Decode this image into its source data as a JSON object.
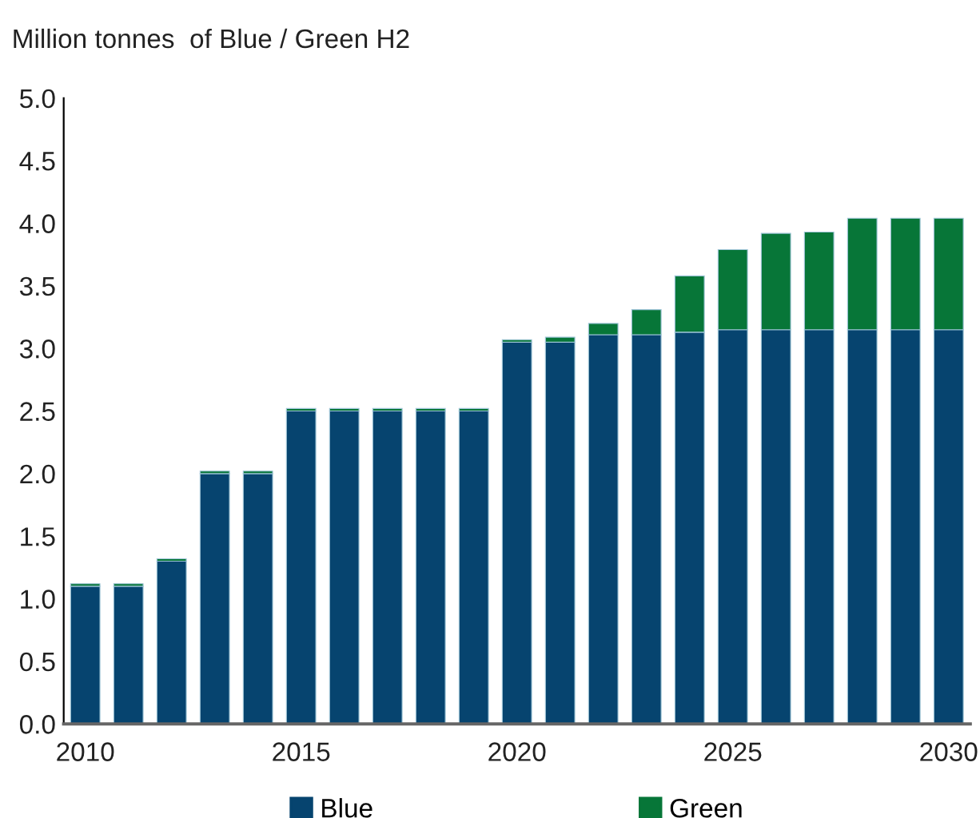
{
  "chart_data": {
    "type": "bar",
    "title": "Million tonnes  of Blue / Green H2",
    "stacked": true,
    "categories": [
      "2010",
      null,
      null,
      null,
      null,
      "2015",
      null,
      null,
      null,
      null,
      "2020",
      null,
      null,
      null,
      null,
      "2025",
      null,
      null,
      null,
      null,
      "2030"
    ],
    "series": [
      {
        "name": "Blue",
        "color": "#06446f",
        "values": [
          1.1,
          1.1,
          1.3,
          2.0,
          2.0,
          2.5,
          2.5,
          2.5,
          2.5,
          2.5,
          3.05,
          3.05,
          3.11,
          3.11,
          3.13,
          3.15,
          3.15,
          3.15,
          3.15,
          3.15,
          3.15
        ]
      },
      {
        "name": "Green",
        "color": "#077638",
        "values": [
          0.02,
          0.02,
          0.02,
          0.02,
          0.02,
          0.02,
          0.02,
          0.02,
          0.02,
          0.02,
          0.02,
          0.04,
          0.09,
          0.2,
          0.45,
          0.64,
          0.77,
          0.78,
          0.89,
          0.89,
          0.89
        ]
      }
    ],
    "ylim": [
      0,
      5.0
    ],
    "yticks": [
      {
        "value": 0,
        "label": "0.0"
      },
      {
        "value": 0.5,
        "label": "0.5"
      },
      {
        "value": 1.0,
        "label": "1.0"
      },
      {
        "value": 1.5,
        "label": "1.5"
      },
      {
        "value": 2.0,
        "label": "2.0"
      },
      {
        "value": 2.5,
        "label": "2.5"
      },
      {
        "value": 3.0,
        "label": "3.0"
      },
      {
        "value": 3.5,
        "label": "3.5"
      },
      {
        "value": 4.0,
        "label": "4.0"
      },
      {
        "value": 4.5,
        "label": "4.5"
      },
      {
        "value": 5.0,
        "label": "5.0"
      }
    ],
    "grid": false,
    "legend": "bottom"
  }
}
